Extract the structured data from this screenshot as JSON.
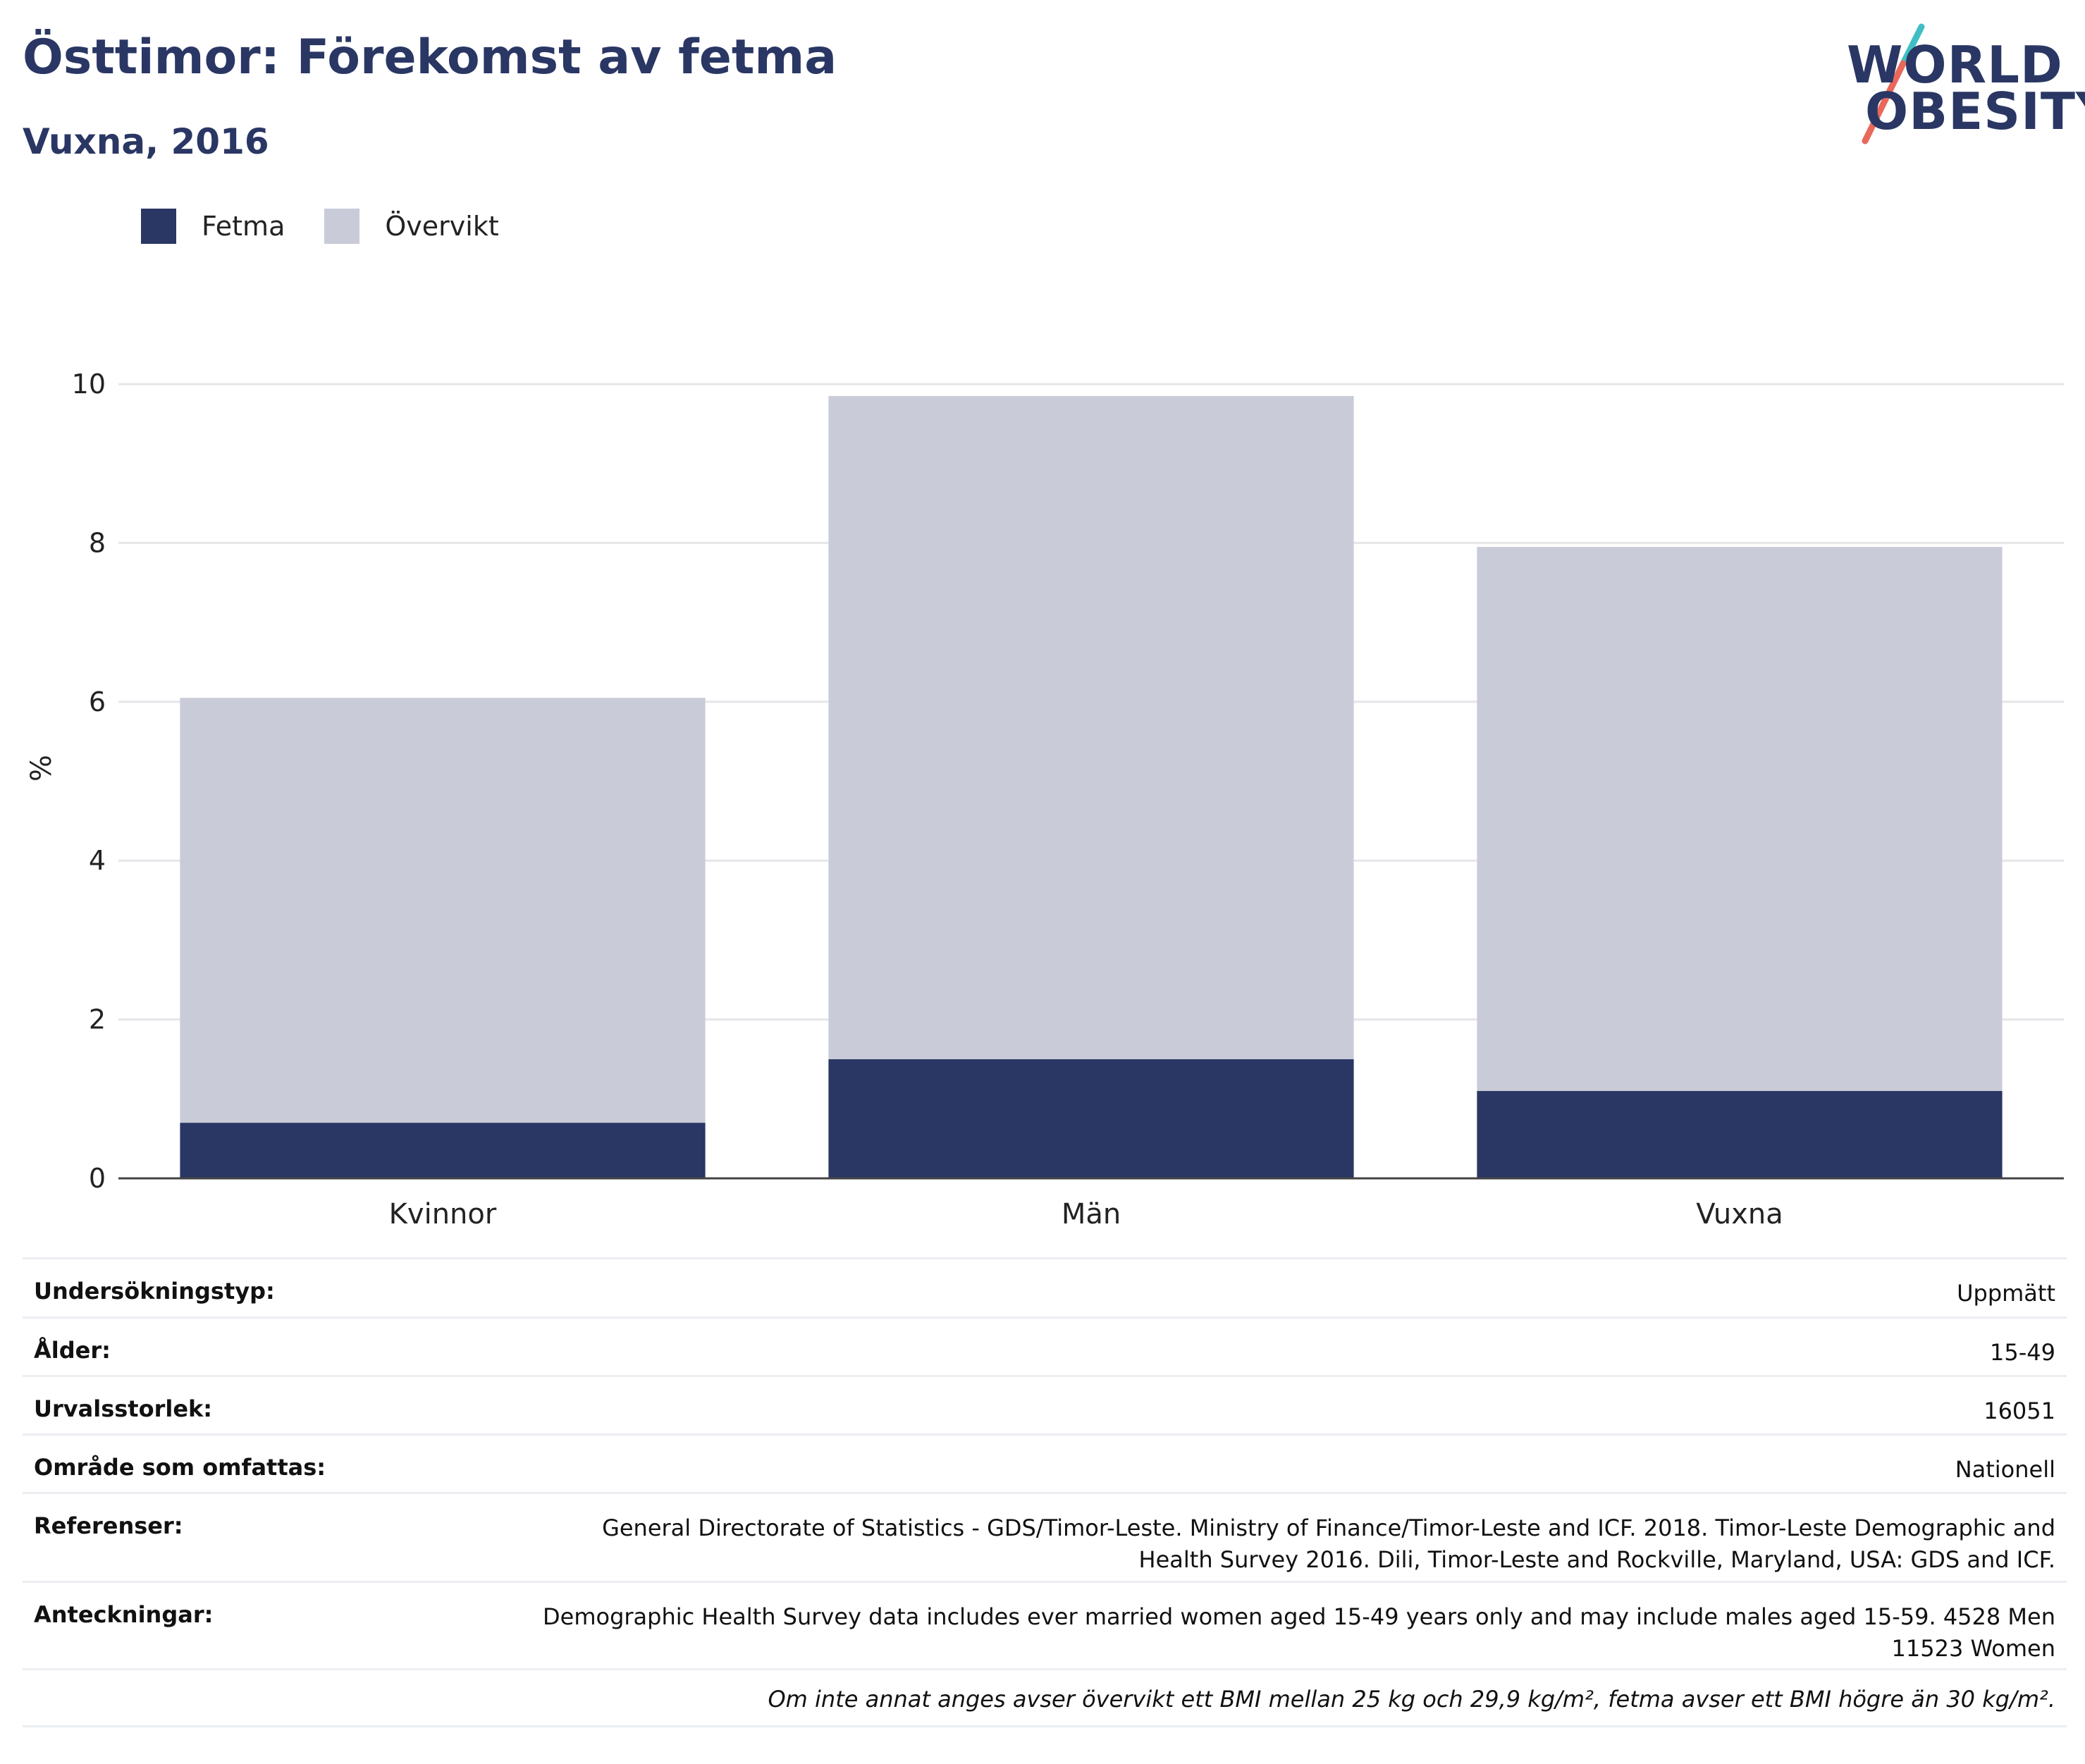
{
  "header": {
    "title": "Östtimor: Förekomst av fetma",
    "subtitle": "Vuxna, 2016"
  },
  "logo": {
    "line1": "WORLD",
    "line2": "OBESITY",
    "icon": "world-obesity-slash-logo",
    "colors": {
      "text": "#2a3764",
      "slash_top": "#3fbfc4",
      "slash_bottom": "#e8685a"
    }
  },
  "legend": [
    {
      "label": "Fetma",
      "color": "#2a3764"
    },
    {
      "label": "Övervikt",
      "color": "#c9ccd8"
    }
  ],
  "chart_data": {
    "type": "bar",
    "stacked": true,
    "categories": [
      "Kvinnor",
      "Män",
      "Vuxna"
    ],
    "series": [
      {
        "name": "Fetma",
        "values": [
          0.7,
          1.5,
          1.1
        ],
        "color": "#2a3764"
      },
      {
        "name": "Övervikt",
        "values": [
          5.35,
          8.35,
          6.85
        ],
        "color": "#c9ccd8"
      }
    ],
    "totals": [
      6.05,
      9.85,
      7.95
    ],
    "ylabel": "%",
    "ylim": [
      0,
      10
    ],
    "yticks": [
      0,
      2,
      4,
      6,
      8,
      10
    ],
    "grid": true,
    "legend_position": "top-left"
  },
  "info": {
    "rows": [
      {
        "label": "Undersökningstyp:",
        "value": "Uppmätt"
      },
      {
        "label": "Ålder:",
        "value": "15-49"
      },
      {
        "label": "Urvalsstorlek:",
        "value": "16051"
      },
      {
        "label": "Område som omfattas:",
        "value": "Nationell"
      },
      {
        "label": "Referenser:",
        "value": "General Directorate of Statistics - GDS/Timor-Leste. Ministry of Finance/Timor-Leste and ICF. 2018. Timor-Leste Demographic and\nHealth Survey 2016. Dili, Timor-Leste and Rockville, Maryland, USA: GDS and ICF."
      },
      {
        "label": "Anteckningar:",
        "value": "Demographic Health Survey data includes ever married women aged 15-49 years only and may include males aged 15-59. 4528 Men\n11523 Women"
      }
    ],
    "note": "Om inte annat anges avser övervikt ett BMI mellan 25 kg och 29,9 kg/m², fetma avser ett BMI högre än 30 kg/m²."
  }
}
